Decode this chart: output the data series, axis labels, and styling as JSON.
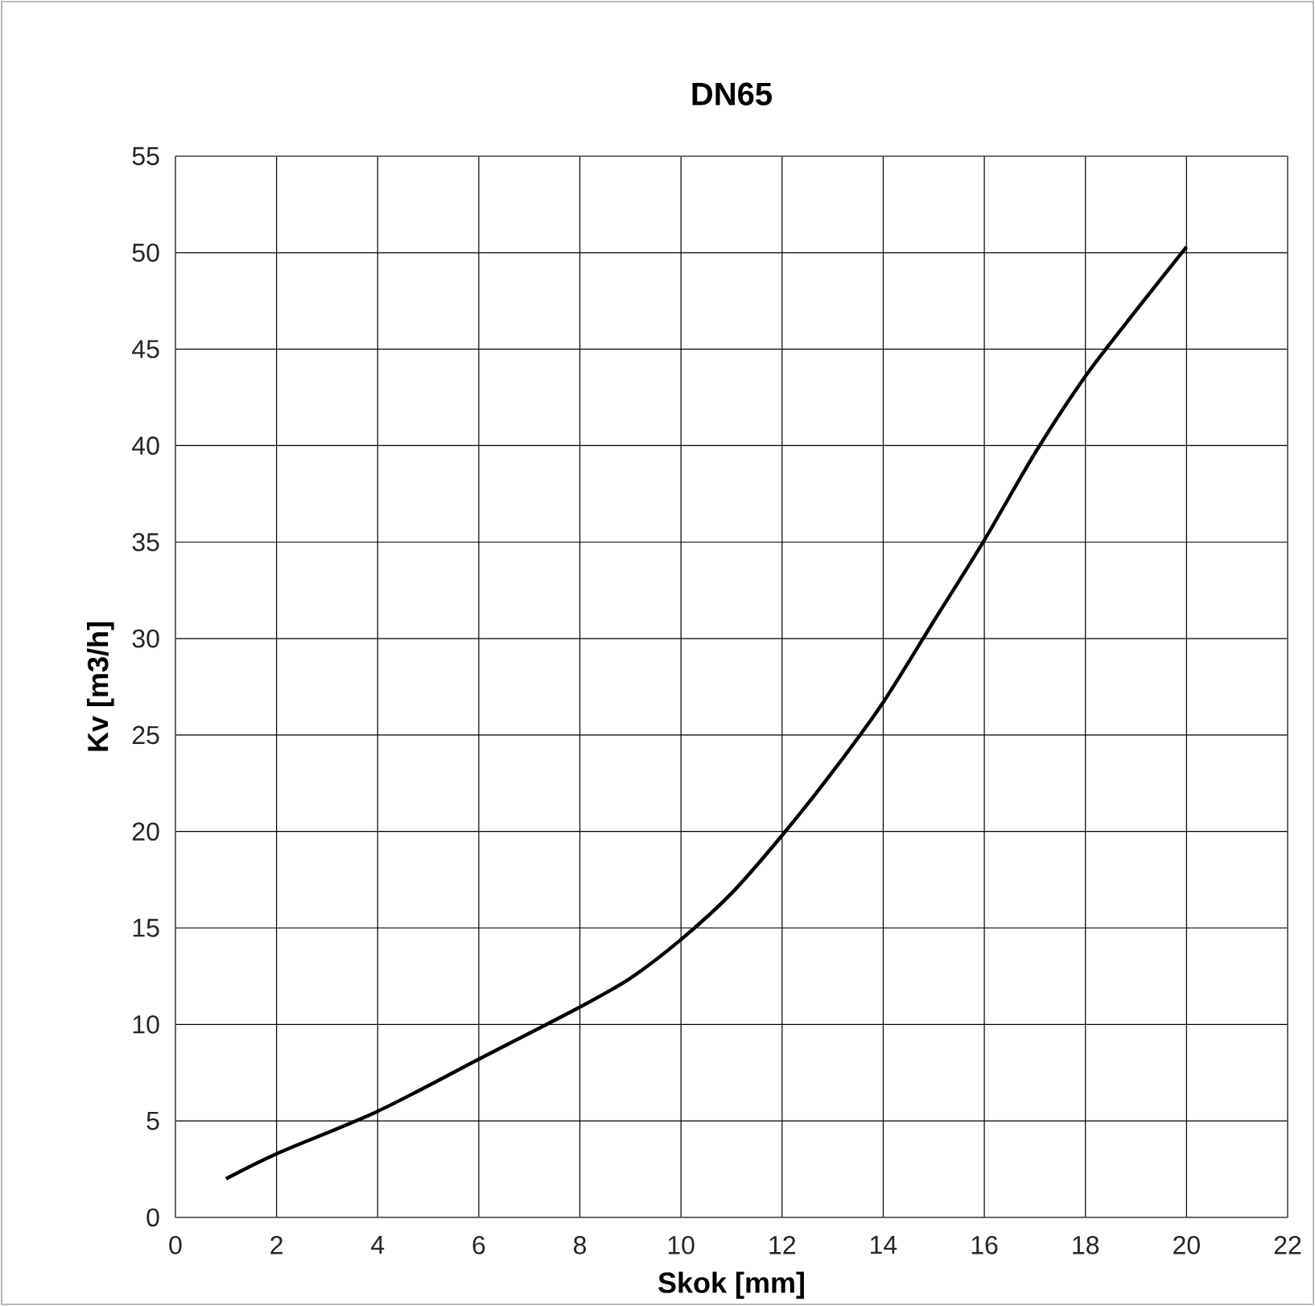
{
  "chart_data": {
    "type": "line",
    "title": "DN65",
    "xlabel": "Skok [mm]",
    "ylabel": "Kv [m3/h]",
    "xlim": [
      0,
      22
    ],
    "ylim": [
      0,
      55
    ],
    "xticks": [
      0,
      2,
      4,
      6,
      8,
      10,
      12,
      14,
      16,
      18,
      20,
      22
    ],
    "yticks": [
      0,
      5,
      10,
      15,
      20,
      25,
      30,
      35,
      40,
      45,
      50,
      55
    ],
    "grid": true,
    "marker": "none",
    "line_style": "solid",
    "x": [
      1,
      2,
      4,
      6,
      8,
      9,
      10,
      11,
      12,
      13,
      14,
      15,
      16,
      17,
      18,
      19,
      20
    ],
    "series": [
      {
        "color": "#000000",
        "values": [
          2.0,
          3.3,
          5.5,
          8.2,
          10.9,
          12.4,
          14.4,
          16.8,
          19.8,
          23.1,
          26.7,
          30.9,
          35.1,
          39.6,
          43.6,
          47.0,
          50.3
        ]
      }
    ]
  }
}
